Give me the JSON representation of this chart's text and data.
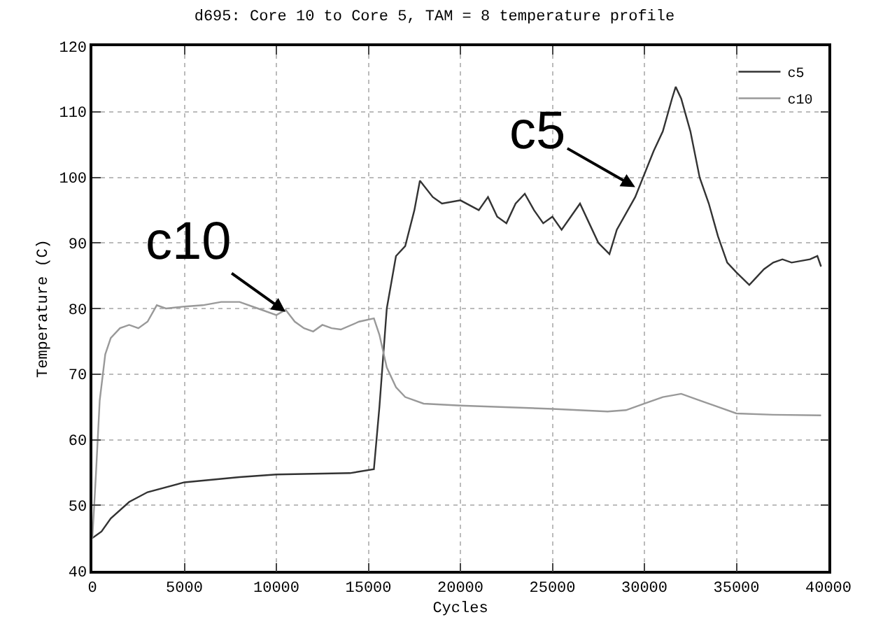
{
  "chart_data": {
    "type": "line",
    "title": "d695: Core 10 to Core 5, TAM = 8 temperature profile",
    "xlabel": "Cycles",
    "ylabel": "Temperature (C)",
    "xlim": [
      0,
      40000
    ],
    "ylim": [
      40,
      120
    ],
    "xticks": [
      0,
      5000,
      10000,
      15000,
      20000,
      25000,
      30000,
      35000,
      40000
    ],
    "yticks": [
      40,
      50,
      60,
      70,
      80,
      90,
      100,
      110,
      120
    ],
    "grid": true,
    "legend": "top right",
    "line_style": "solid",
    "series": [
      {
        "name": "c5",
        "color": "#333333",
        "x": [
          0,
          500,
          1000,
          2000,
          3000,
          5000,
          8000,
          10000,
          14000,
          15300,
          15600,
          16000,
          16500,
          17000,
          17500,
          17800,
          18500,
          19000,
          20000,
          21000,
          21500,
          22000,
          22500,
          23000,
          23500,
          24000,
          24500,
          25000,
          25500,
          26000,
          26500,
          27000,
          27500,
          28100,
          28500,
          29500,
          30500,
          31000,
          31500,
          31700,
          32000,
          32500,
          33000,
          33500,
          34000,
          34500,
          35000,
          35700,
          36000,
          36500,
          37000,
          37500,
          38000,
          39000,
          39400,
          39600
        ],
        "values": [
          45,
          46,
          48,
          50.5,
          52,
          53.5,
          54.3,
          54.7,
          54.9,
          55.5,
          65,
          80,
          88,
          89.5,
          95,
          99.5,
          97,
          96,
          96.5,
          95,
          97,
          94,
          93,
          96,
          97.5,
          95,
          93,
          94,
          92,
          94,
          96,
          93,
          90,
          88.3,
          92,
          97,
          104,
          107,
          112,
          113.8,
          112,
          107,
          100,
          96,
          91,
          87,
          85.5,
          83.6,
          84.5,
          86,
          87,
          87.5,
          87,
          87.5,
          88,
          86.4
        ]
      },
      {
        "name": "c10",
        "color": "#999999",
        "x": [
          0,
          200,
          400,
          700,
          1000,
          1500,
          2000,
          2500,
          3000,
          3500,
          4000,
          5000,
          6000,
          7000,
          8000,
          9000,
          10000,
          10500,
          11000,
          11500,
          12000,
          12500,
          13000,
          13500,
          14500,
          15300,
          15600,
          16000,
          16500,
          17000,
          18000,
          20000,
          25000,
          28000,
          29000,
          30000,
          31000,
          32000,
          33000,
          34000,
          35000,
          37000,
          39600
        ],
        "values": [
          45,
          55,
          66,
          73,
          75.5,
          77,
          77.5,
          77,
          78,
          80.5,
          80,
          80.3,
          80.5,
          81,
          81,
          80,
          79,
          79.8,
          78,
          77,
          76.5,
          77.5,
          77,
          76.8,
          78,
          78.5,
          76,
          71,
          68,
          66.5,
          65.5,
          65.2,
          64.7,
          64.3,
          64.5,
          65.5,
          66.5,
          67,
          66,
          65,
          64,
          63.8,
          63.7
        ]
      }
    ],
    "annotations": [
      {
        "text": "c10",
        "x": 10500,
        "y": 79.5
      },
      {
        "text": "c5",
        "x": 29500,
        "y": 98.5
      }
    ]
  }
}
